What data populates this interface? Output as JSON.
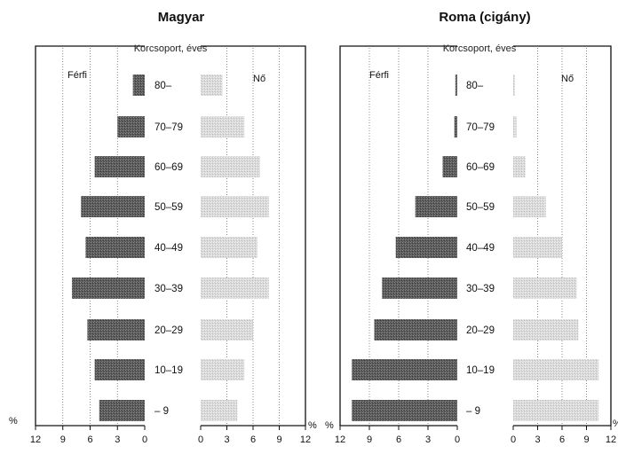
{
  "colors": {
    "male": "#5a5a5a",
    "female": "#d6d6d6",
    "frame": "#111111"
  },
  "chart_data": {
    "type": "bar",
    "subtype": "population-pyramid",
    "percent_symbol": "%",
    "age_axis_label": "Korcsoport, éves",
    "age_groups": [
      "80–",
      "70–79",
      "60–69",
      "50–59",
      "40–49",
      "30–39",
      "20–29",
      "10–19",
      "– 9"
    ],
    "xlim": [
      0,
      12
    ],
    "ticks": [
      0,
      3,
      6,
      9,
      12
    ],
    "grid": true,
    "panels": [
      {
        "title": "Magyar",
        "series": [
          {
            "name": "Férfi",
            "side": "left",
            "values": [
              1.3,
              3.0,
              5.5,
              7.0,
              6.5,
              8.0,
              6.3,
              5.5,
              5.0
            ]
          },
          {
            "name": "Nő",
            "side": "right",
            "values": [
              2.5,
              5.0,
              6.8,
              7.8,
              6.5,
              7.8,
              6.0,
              5.0,
              4.2
            ]
          }
        ]
      },
      {
        "title": "Roma (cigány)",
        "series": [
          {
            "name": "Férfi",
            "side": "left",
            "values": [
              0.2,
              0.3,
              1.5,
              4.3,
              6.3,
              7.7,
              8.5,
              10.8,
              10.8
            ]
          },
          {
            "name": "Nő",
            "side": "right",
            "values": [
              0.2,
              0.4,
              1.5,
              4.0,
              6.0,
              7.8,
              8.0,
              10.5,
              10.5
            ]
          }
        ]
      }
    ]
  }
}
